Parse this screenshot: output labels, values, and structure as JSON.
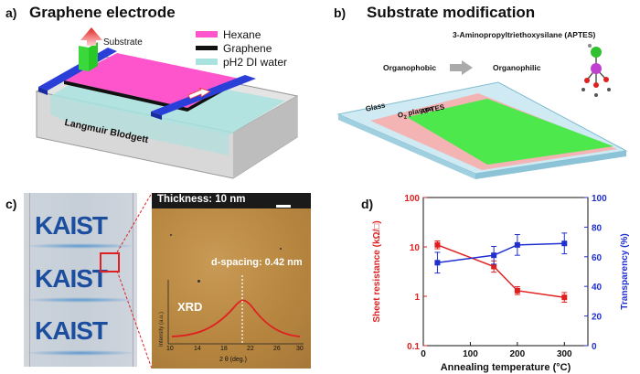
{
  "panel_a": {
    "label": "a)",
    "title": "Graphene electrode",
    "substrate_label": "Substrate",
    "trough_label": "Langmuir Blodgett",
    "legend": [
      {
        "text": "Hexane",
        "color": "#ff55cc"
      },
      {
        "text": "Graphene",
        "color": "#111111"
      },
      {
        "text": "pH2 DI water",
        "color": "#a9e3df"
      }
    ]
  },
  "panel_b": {
    "label": "b)",
    "title": "Substrate modification",
    "molecule_label": "3-Aminopropyltriethoxysilane (APTES)",
    "from_label": "Organophobic",
    "to_label": "Organophilic",
    "glass_label": "Glass",
    "plasma_label_main": "O",
    "plasma_label_sub": "2",
    "plasma_label_rest": " plasma",
    "aptes_label": "APTES"
  },
  "panel_c": {
    "label": "c)",
    "logo_text": "KAIST",
    "thickness_label": "Thickness:  10 nm",
    "d_spacing_label": "d-spacing:  0.42 nm",
    "xrd_label": "XRD",
    "xrd_ylabel": "Intensity (a.u.)",
    "xrd_xlabel": "2 θ (deg.)",
    "xrd_ticks": [
      "10",
      "14",
      "18",
      "22",
      "26",
      "30"
    ]
  },
  "panel_d": {
    "label": "d)",
    "colors": {
      "resistance": "#e02020",
      "transparency": "#1f2fd0"
    }
  },
  "chart_data": {
    "type": "line",
    "xlabel": "Annealing temperature (°C)",
    "ylabel_left": "Sheet resistance (kΩ/□)",
    "ylabel_right": "Transparency (%)",
    "xlim": [
      0,
      350
    ],
    "ylim_left": [
      0.1,
      100
    ],
    "ylim_right": [
      0,
      100
    ],
    "left_log_scale": true,
    "x_ticks": [
      "0",
      "100",
      "200",
      "300"
    ],
    "y_left_ticks": [
      "0.1",
      "1",
      "10",
      "100"
    ],
    "y_right_ticks": [
      "0",
      "20",
      "40",
      "60",
      "80",
      "100"
    ],
    "series": [
      {
        "axis": "left",
        "color": "#e02020",
        "x": [
          30,
          150,
          200,
          300
        ],
        "y": [
          11,
          4,
          1.3,
          0.95
        ],
        "err_factor": [
          1.2,
          1.3,
          1.2,
          1.25
        ]
      },
      {
        "axis": "right",
        "color": "#1f2fd0",
        "x": [
          30,
          150,
          200,
          300
        ],
        "y": [
          56,
          61,
          68,
          69
        ],
        "err": [
          7,
          6,
          7,
          7
        ]
      }
    ]
  }
}
